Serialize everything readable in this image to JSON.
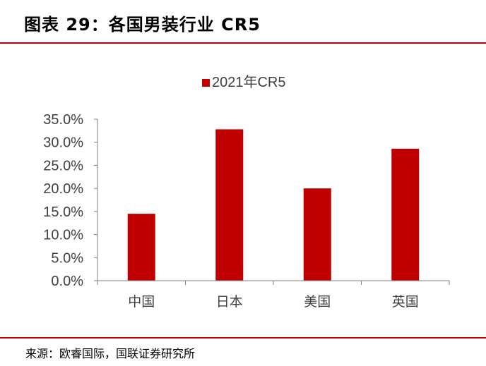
{
  "header": {
    "title": "图表 29：各国男装行业 CR5"
  },
  "chart_data": {
    "type": "bar",
    "categories": [
      "中国",
      "日本",
      "美国",
      "英国"
    ],
    "series": [
      {
        "name": "2021年CR5",
        "values": [
          14.5,
          32.8,
          20.0,
          28.6
        ]
      }
    ],
    "ylim": [
      0,
      35
    ],
    "yticks": [
      "0.0%",
      "5.0%",
      "10.0%",
      "15.0%",
      "20.0%",
      "25.0%",
      "30.0%",
      "35.0%"
    ],
    "legend_position": "top-center",
    "grid": false,
    "bar_color": "#c00000"
  },
  "footer": {
    "source": "来源：欧睿国际，国联证券研究所"
  }
}
